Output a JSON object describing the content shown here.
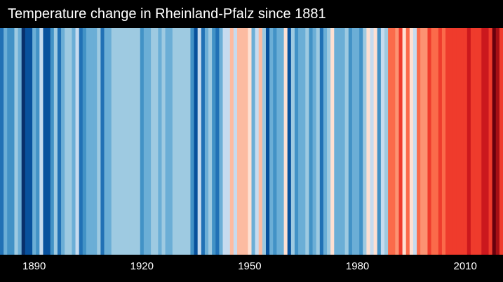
{
  "chart_data": {
    "type": "heatmap",
    "title": "Temperature change in Rheinland-Pfalz since 1881",
    "x_start": 1881,
    "x_end": 2020,
    "x_tick_labels": [
      "1890",
      "1920",
      "1950",
      "1980",
      "2010"
    ],
    "color_scale": [
      "#08306b",
      "#08519c",
      "#2171b5",
      "#4292c6",
      "#6baed6",
      "#9ecae1",
      "#c6dbef",
      "#fee0d2",
      "#fcbba1",
      "#fc9272",
      "#fb6a4a",
      "#ef3b2c",
      "#cb181d",
      "#a50f15",
      "#67000d"
    ],
    "legend": "none",
    "values": [
      -0.65,
      -0.3,
      -0.5,
      -0.55,
      -0.1,
      -0.35,
      -0.95,
      -0.9,
      -0.85,
      -0.35,
      -0.5,
      -0.05,
      -0.8,
      -0.8,
      -0.5,
      -0.15,
      -0.65,
      -0.3,
      -0.15,
      -0.1,
      -0.35,
      -0.05,
      -0.65,
      -0.45,
      -0.35,
      -0.3,
      -0.4,
      -0.15,
      -0.65,
      -0.35,
      -0.35,
      -0.1,
      -0.2,
      -0.2,
      -0.2,
      -0.2,
      -0.15,
      -0.15,
      -0.2,
      -0.5,
      -0.25,
      -0.3,
      -0.2,
      -0.2,
      -0.3,
      -0.2,
      -0.25,
      -0.3,
      -0.2,
      -0.2,
      -0.15,
      -0.2,
      -0.2,
      -0.45,
      -0.75,
      0.05,
      -0.6,
      -0.3,
      -0.2,
      -0.45,
      -0.7,
      -0.25,
      -0.05,
      -0.05,
      0.4,
      0.0,
      0.45,
      0.3,
      0.35,
      0.25,
      -0.25,
      0.05,
      0.35,
      -0.15,
      -0.75,
      -0.3,
      -0.55,
      -0.25,
      -0.3,
      0.2,
      -0.8,
      -0.1,
      -0.45,
      -0.25,
      -0.4,
      -0.15,
      -0.5,
      -0.35,
      -0.15,
      -0.6,
      -0.4,
      -0.2,
      0.25,
      -0.25,
      -0.4,
      -0.3,
      -0.2,
      -0.5,
      -0.4,
      -0.4,
      -0.55,
      -0.2,
      0.25,
      0.1,
      0.25,
      -0.5,
      -0.05,
      -0.15,
      0.7,
      0.65,
      0.5,
      0.8,
      0.25,
      0.7,
      0.15,
      -0.05,
      0.65,
      0.6,
      0.6,
      0.8,
      0.65,
      0.75,
      0.9,
      0.75,
      0.8,
      0.9,
      0.9,
      0.95,
      0.9,
      0.85,
      1.0,
      0.8,
      0.85,
      0.9,
      1.1,
      1.1,
      0.95,
      1.35,
      1.25,
      0.95
    ]
  }
}
